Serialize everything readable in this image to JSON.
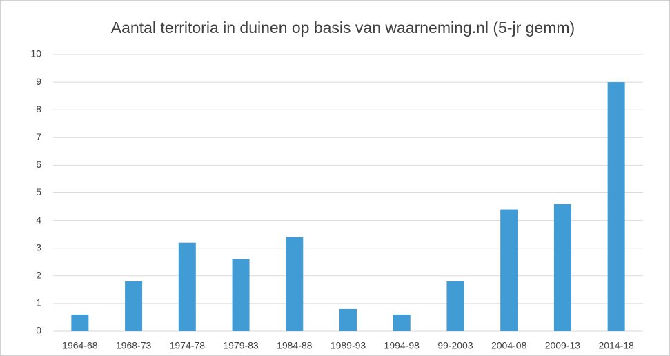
{
  "chart_data": {
    "type": "bar",
    "title": "Aantal territoria in duinen op basis van waarneming.nl (5-jr gemm)",
    "categories": [
      "1964-68",
      "1968-73",
      "1974-78",
      "1979-83",
      "1984-88",
      "1989-93",
      "1994-98",
      "99-2003",
      "2004-08",
      "2009-13",
      "2014-18"
    ],
    "values": [
      0.6,
      1.8,
      3.2,
      2.6,
      3.4,
      0.8,
      0.6,
      1.8,
      4.4,
      4.6,
      9
    ],
    "color": "#419bd5",
    "ylim": [
      0,
      10
    ],
    "yticks": [
      0,
      1,
      2,
      3,
      4,
      5,
      6,
      7,
      8,
      9,
      10
    ],
    "grid": true
  }
}
